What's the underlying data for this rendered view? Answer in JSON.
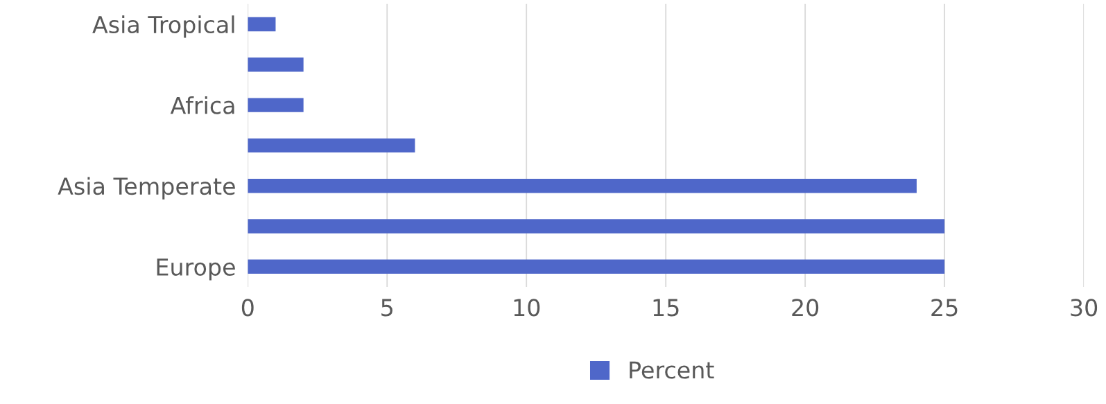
{
  "chart_data": {
    "type": "bar",
    "orientation": "horizontal",
    "categories": [
      "Asia Tropical",
      null,
      "Africa",
      null,
      "Asia Temperate",
      null,
      "Europe"
    ],
    "series": [
      {
        "name": "Percent",
        "color": "#4f67c9",
        "values": [
          1,
          2,
          2,
          6,
          24,
          25,
          25
        ]
      }
    ],
    "xlim": [
      0,
      30
    ],
    "xticks": [
      0,
      5,
      10,
      15,
      20,
      25,
      30
    ],
    "grid": "x",
    "legend": "bottom"
  }
}
